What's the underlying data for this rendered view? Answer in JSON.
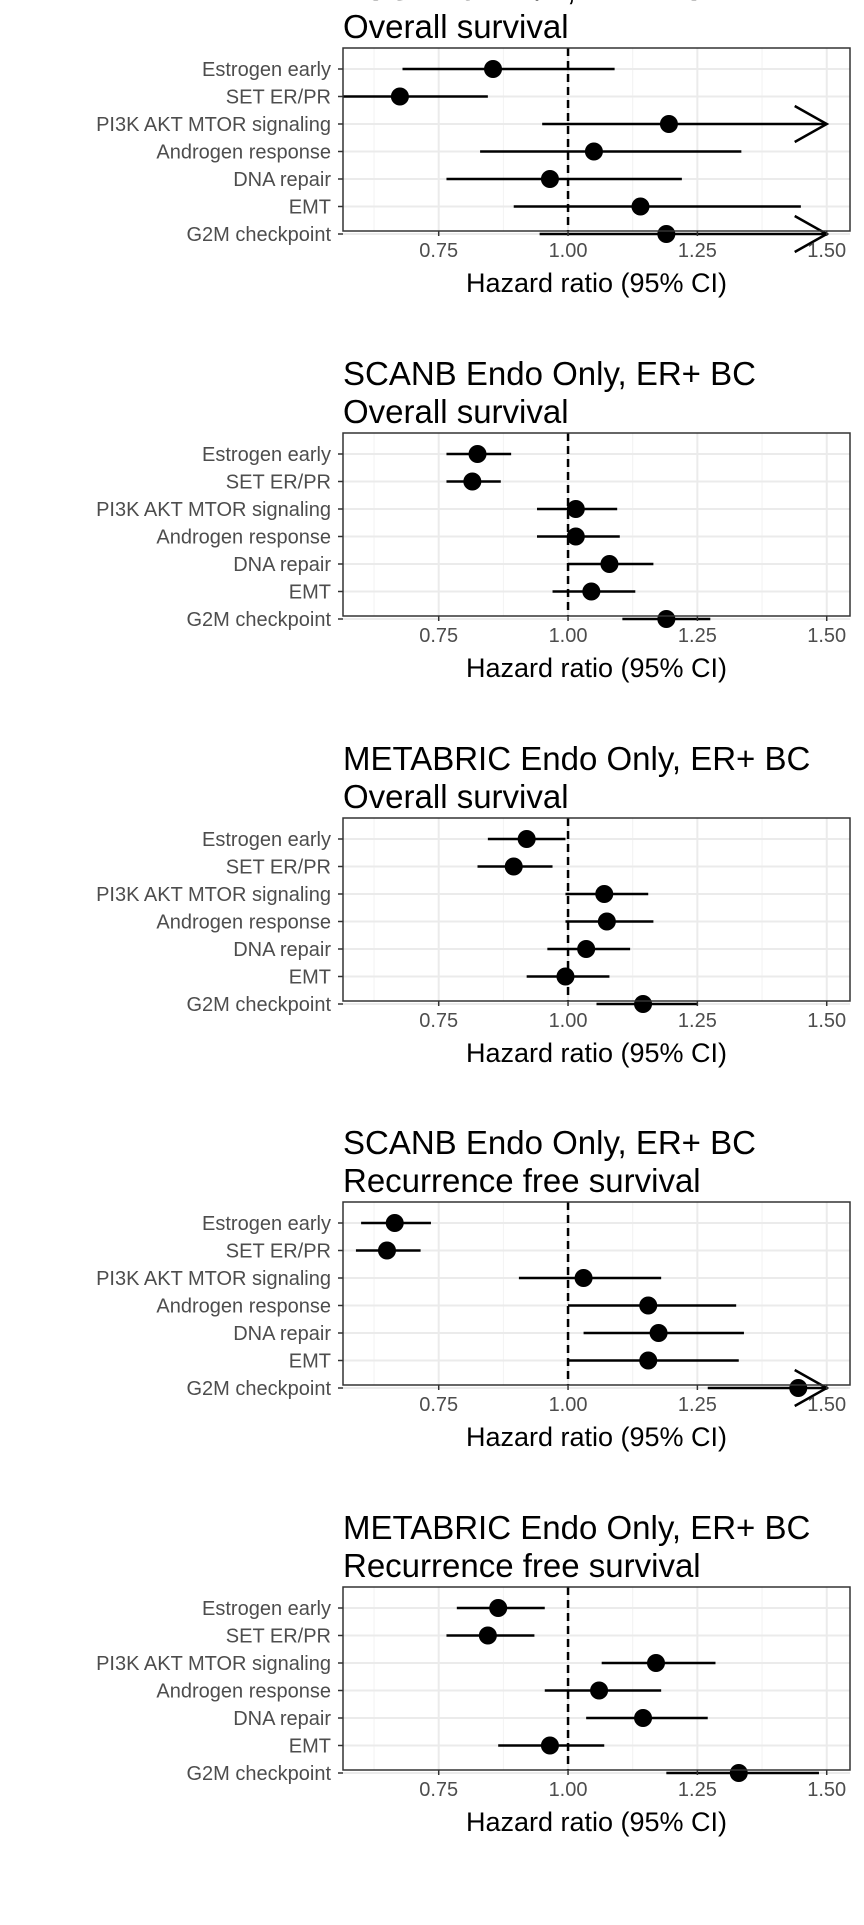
{
  "chart_data": [
    {
      "type": "forest",
      "title": "TCGA Lum A/B, ER+ BC",
      "subtitle": "Overall survival",
      "xlabel": "Hazard ratio (95% CI)",
      "xlim": [
        0.565,
        1.545
      ],
      "xticks": [
        "0.75",
        "1.00",
        "1.25",
        "1.50"
      ],
      "reference_line": 1.0,
      "grid": true,
      "categories": [
        "Estrogen early",
        "SET ER/PR",
        "PI3K AKT MTOR signaling",
        "Androgen response",
        "DNA repair",
        "EMT",
        "G2M checkpoint"
      ],
      "estimates": [
        0.855,
        0.675,
        1.195,
        1.05,
        0.965,
        1.14,
        1.19
      ],
      "lower": [
        0.68,
        0.565,
        0.95,
        0.83,
        0.765,
        0.895,
        0.945
      ],
      "upper": [
        1.09,
        0.845,
        1.5,
        1.335,
        1.22,
        1.45,
        1.5
      ],
      "truncated_upper": [
        false,
        false,
        true,
        false,
        false,
        false,
        true
      ]
    },
    {
      "type": "forest",
      "title": "SCANB Endo Only, ER+ BC",
      "subtitle": "Overall survival",
      "xlabel": "Hazard ratio (95% CI)",
      "xlim": [
        0.565,
        1.545
      ],
      "xticks": [
        "0.75",
        "1.00",
        "1.25",
        "1.50"
      ],
      "reference_line": 1.0,
      "grid": true,
      "categories": [
        "Estrogen early",
        "SET ER/PR",
        "PI3K AKT MTOR signaling",
        "Androgen response",
        "DNA repair",
        "EMT",
        "G2M checkpoint"
      ],
      "estimates": [
        0.825,
        0.815,
        1.015,
        1.015,
        1.08,
        1.045,
        1.19
      ],
      "lower": [
        0.765,
        0.765,
        0.94,
        0.94,
        1.0,
        0.97,
        1.105
      ],
      "upper": [
        0.89,
        0.87,
        1.095,
        1.1,
        1.165,
        1.13,
        1.275
      ],
      "truncated_upper": [
        false,
        false,
        false,
        false,
        false,
        false,
        false
      ]
    },
    {
      "type": "forest",
      "title": "METABRIC Endo Only, ER+ BC",
      "subtitle": "Overall survival",
      "xlabel": "Hazard ratio (95% CI)",
      "xlim": [
        0.565,
        1.545
      ],
      "xticks": [
        "0.75",
        "1.00",
        "1.25",
        "1.50"
      ],
      "reference_line": 1.0,
      "grid": true,
      "categories": [
        "Estrogen early",
        "SET ER/PR",
        "PI3K AKT MTOR signaling",
        "Androgen response",
        "DNA repair",
        "EMT",
        "G2M checkpoint"
      ],
      "estimates": [
        0.92,
        0.895,
        1.07,
        1.075,
        1.035,
        0.995,
        1.145
      ],
      "lower": [
        0.845,
        0.825,
        0.995,
        0.995,
        0.96,
        0.92,
        1.055
      ],
      "upper": [
        0.995,
        0.97,
        1.155,
        1.165,
        1.12,
        1.08,
        1.25
      ],
      "truncated_upper": [
        false,
        false,
        false,
        false,
        false,
        false,
        false
      ]
    },
    {
      "type": "forest",
      "title": "SCANB Endo Only, ER+ BC",
      "subtitle": "Recurrence free survival",
      "xlabel": "Hazard ratio (95% CI)",
      "xlim": [
        0.565,
        1.545
      ],
      "xticks": [
        "0.75",
        "1.00",
        "1.25",
        "1.50"
      ],
      "reference_line": 1.0,
      "grid": true,
      "categories": [
        "Estrogen early",
        "SET ER/PR",
        "PI3K AKT MTOR signaling",
        "Androgen response",
        "DNA repair",
        "EMT",
        "G2M checkpoint"
      ],
      "estimates": [
        0.665,
        0.65,
        1.03,
        1.155,
        1.175,
        1.155,
        1.445
      ],
      "lower": [
        0.6,
        0.59,
        0.905,
        1.0,
        1.03,
        1.0,
        1.27
      ],
      "upper": [
        0.735,
        0.715,
        1.18,
        1.325,
        1.34,
        1.33,
        1.5
      ],
      "truncated_upper": [
        false,
        false,
        false,
        false,
        false,
        false,
        true
      ]
    },
    {
      "type": "forest",
      "title": "METABRIC Endo Only, ER+ BC",
      "subtitle": "Recurrence free survival",
      "xlabel": "Hazard ratio (95% CI)",
      "xlim": [
        0.565,
        1.545
      ],
      "xticks": [
        "0.75",
        "1.00",
        "1.25",
        "1.50"
      ],
      "reference_line": 1.0,
      "grid": true,
      "categories": [
        "Estrogen early",
        "SET ER/PR",
        "PI3K AKT MTOR signaling",
        "Androgen response",
        "DNA repair",
        "EMT",
        "G2M checkpoint"
      ],
      "estimates": [
        0.865,
        0.845,
        1.17,
        1.06,
        1.145,
        0.965,
        1.33
      ],
      "lower": [
        0.785,
        0.765,
        1.065,
        0.955,
        1.035,
        0.865,
        1.19
      ],
      "upper": [
        0.955,
        0.935,
        1.285,
        1.18,
        1.27,
        1.07,
        1.485
      ],
      "truncated_upper": [
        false,
        false,
        false,
        false,
        false,
        false,
        false
      ]
    }
  ]
}
